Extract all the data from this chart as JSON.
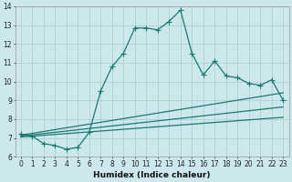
{
  "title": "",
  "xlabel": "Humidex (Indice chaleur)",
  "bg_color": "#cce8ec",
  "grid_color": "#b0d0d4",
  "line_color": "#1a7a6e",
  "xlim_min": -0.5,
  "xlim_max": 23.5,
  "ylim_min": 6,
  "ylim_max": 14,
  "x_ticks": [
    0,
    1,
    2,
    3,
    4,
    5,
    6,
    7,
    8,
    9,
    10,
    11,
    12,
    13,
    14,
    15,
    16,
    17,
    18,
    19,
    20,
    21,
    22,
    23
  ],
  "y_ticks": [
    6,
    7,
    8,
    9,
    10,
    11,
    12,
    13,
    14
  ],
  "main_line_x": [
    0,
    1,
    2,
    3,
    4,
    5,
    6,
    7,
    8,
    9,
    10,
    11,
    12,
    13,
    14,
    15,
    16,
    17,
    18,
    19,
    20,
    21,
    22,
    23
  ],
  "main_line_y": [
    7.2,
    7.1,
    6.7,
    6.6,
    6.4,
    6.5,
    7.3,
    9.5,
    10.8,
    11.5,
    12.85,
    12.85,
    12.75,
    13.2,
    13.8,
    11.5,
    10.35,
    11.1,
    10.3,
    10.2,
    9.9,
    9.8,
    10.1,
    9.0
  ],
  "line2_x": [
    0,
    23
  ],
  "line2_y": [
    7.15,
    9.4
  ],
  "line3_x": [
    0,
    23
  ],
  "line3_y": [
    7.1,
    8.65
  ],
  "line4_x": [
    0,
    23
  ],
  "line4_y": [
    7.05,
    8.1
  ],
  "tick_fontsize": 5.5,
  "xlabel_fontsize": 6.5,
  "linewidth": 0.9,
  "markersize": 2.2
}
